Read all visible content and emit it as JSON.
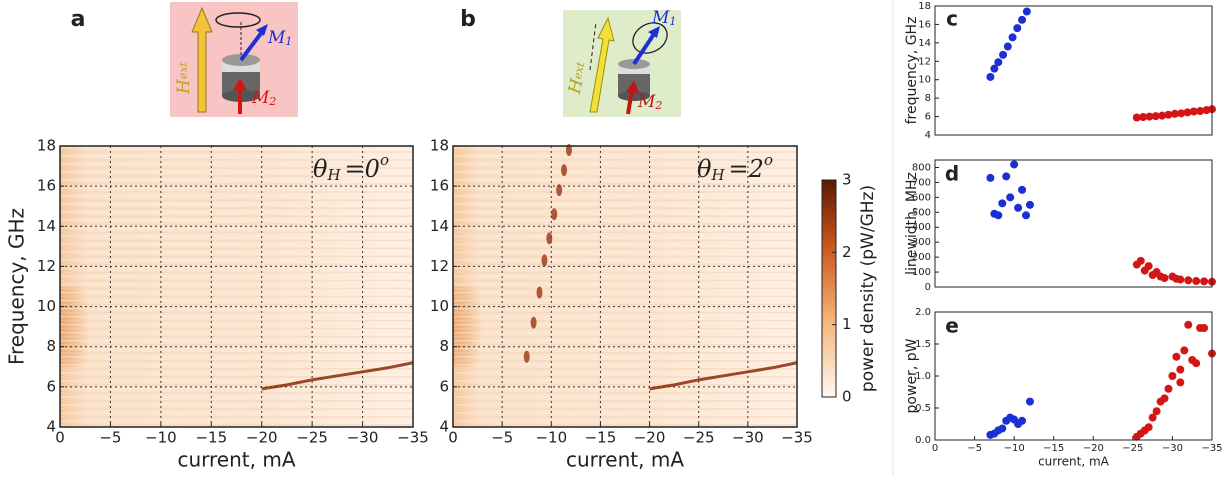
{
  "chart_data": [
    {
      "type": "heatmap",
      "panel": "a",
      "annotation_parts": [
        "θ",
        "H",
        "=0",
        "o"
      ],
      "xlabel": "current, mA",
      "ylabel": "Frequency, GHz",
      "xlim": [
        0,
        -35
      ],
      "ylim": [
        4,
        18
      ],
      "xticks": [
        0,
        {
          "value": -5,
          "label": "−5"
        },
        {
          "value": -10,
          "label": "−10"
        },
        {
          "value": -15,
          "label": "−15"
        },
        {
          "value": -20,
          "label": "−20"
        },
        {
          "value": -25,
          "label": "−25"
        },
        {
          "value": -30,
          "label": "−30"
        },
        {
          "value": -35,
          "label": "−35"
        }
      ],
      "yticks": [
        4,
        6,
        8,
        10,
        12,
        14,
        16,
        18
      ],
      "grid": true,
      "series": [
        {
          "style": "line",
          "color": "#8a2a08",
          "x": [
            -20,
            -22.5,
            -25,
            -27.5,
            -30,
            -32.5,
            -35
          ],
          "values": [
            5.9,
            6.1,
            6.35,
            6.55,
            6.75,
            6.95,
            7.2
          ]
        }
      ]
    },
    {
      "type": "heatmap",
      "panel": "b",
      "annotation_parts": [
        "θ",
        "H",
        "=2",
        "o"
      ],
      "xlabel": "current, mA",
      "xlim": [
        0,
        -35
      ],
      "ylim": [
        4,
        18
      ],
      "xticks": [
        0,
        {
          "value": -5,
          "label": "−5"
        },
        {
          "value": -10,
          "label": "−10"
        },
        {
          "value": -15,
          "label": "−15"
        },
        {
          "value": -20,
          "label": "−20"
        },
        {
          "value": -25,
          "label": "−25"
        },
        {
          "value": -30,
          "label": "−30"
        },
        {
          "value": -35,
          "label": "−35"
        }
      ],
      "yticks": [
        4,
        6,
        8,
        10,
        12,
        14,
        16,
        18
      ],
      "grid": true,
      "series": [
        {
          "style": "dots",
          "color": "#9a3410",
          "x": [
            -7.5,
            -8.2,
            -8.8,
            -9.3,
            -9.8,
            -10.3,
            -10.8,
            -11.3,
            -11.8
          ],
          "values": [
            7.5,
            9.2,
            10.7,
            12.3,
            13.4,
            14.6,
            15.8,
            16.8,
            17.8
          ]
        },
        {
          "style": "line",
          "color": "#8a2a08",
          "x": [
            -20,
            -22.5,
            -25,
            -27.5,
            -30,
            -32.5,
            -35
          ],
          "values": [
            5.9,
            6.1,
            6.35,
            6.55,
            6.75,
            6.95,
            7.2
          ]
        }
      ]
    },
    {
      "type": "colorbar",
      "label": "power density (pW/GHz)",
      "ylim": [
        0,
        3
      ],
      "yticks": [
        0,
        1,
        2,
        3
      ]
    },
    {
      "type": "scatter",
      "panel": "c",
      "ylabel": "frequency, GHz",
      "xlim": [
        0,
        -35
      ],
      "ylim": [
        4,
        18
      ],
      "yticks": [
        4,
        6,
        8,
        10,
        12,
        14,
        16,
        18
      ],
      "series": [
        {
          "color": "#1a2fd6",
          "x": [
            -7,
            -7.5,
            -8,
            -8.6,
            -9.2,
            -9.8,
            -10.4,
            -11,
            -11.6
          ],
          "values": [
            10.3,
            11.2,
            11.9,
            12.7,
            13.6,
            14.6,
            15.6,
            16.5,
            17.4
          ]
        },
        {
          "color": "#d41515",
          "x": [
            -25.5,
            -26.3,
            -27.1,
            -27.9,
            -28.7,
            -29.5,
            -30.3,
            -31.1,
            -31.9,
            -32.7,
            -33.5,
            -34.3,
            -35
          ],
          "values": [
            5.9,
            5.95,
            6.0,
            6.05,
            6.1,
            6.2,
            6.3,
            6.35,
            6.45,
            6.55,
            6.6,
            6.7,
            6.8
          ]
        }
      ]
    },
    {
      "type": "scatter",
      "panel": "d",
      "ylabel": "linewidth, MHz",
      "xlim": [
        0,
        -35
      ],
      "ylim": [
        0,
        850
      ],
      "yticks": [
        0,
        100,
        200,
        300,
        400,
        500,
        600,
        700,
        800
      ],
      "series": [
        {
          "color": "#1a2fd6",
          "x": [
            -7,
            -7.5,
            -8,
            -8.5,
            -9,
            -9.5,
            -10,
            -10.5,
            -11,
            -11.5,
            -12
          ],
          "values": [
            730,
            490,
            480,
            560,
            740,
            600,
            820,
            530,
            650,
            480,
            550
          ]
        },
        {
          "color": "#d41515",
          "x": [
            -25.5,
            -26,
            -26.5,
            -27,
            -27.5,
            -28,
            -28.5,
            -29,
            -30,
            -30.5,
            -31,
            -32,
            -33,
            -34,
            -35
          ],
          "values": [
            150,
            175,
            110,
            140,
            80,
            100,
            70,
            60,
            70,
            55,
            50,
            45,
            40,
            38,
            35
          ]
        }
      ]
    },
    {
      "type": "scatter",
      "panel": "e",
      "ylabel": "power, pW",
      "xlabel": "current, mA",
      "xlim": [
        0,
        -35
      ],
      "ylim": [
        0,
        2
      ],
      "xticks": [
        0,
        {
          "value": -5,
          "label": "−5"
        },
        {
          "value": -10,
          "label": "−10"
        },
        {
          "value": -15,
          "label": "−15"
        },
        {
          "value": -20,
          "label": "−20"
        },
        {
          "value": -25,
          "label": "−25"
        },
        {
          "value": -30,
          "label": "−30"
        },
        {
          "value": -35,
          "label": "−35"
        }
      ],
      "yticks": [
        {
          "value": 0,
          "label": "0.0"
        },
        {
          "value": 0.5,
          "label": "0.5"
        },
        {
          "value": 1,
          "label": "1.0"
        },
        {
          "value": 1.5,
          "label": "1.5"
        },
        {
          "value": 2,
          "label": "2.0"
        }
      ],
      "series": [
        {
          "color": "#1a2fd6",
          "x": [
            -7,
            -7.5,
            -8,
            -8.5,
            -9,
            -9.5,
            -10,
            -10.5,
            -11,
            -12
          ],
          "values": [
            0.08,
            0.1,
            0.15,
            0.18,
            0.3,
            0.35,
            0.32,
            0.25,
            0.3,
            0.6
          ]
        },
        {
          "color": "#d41515",
          "x": [
            -25.5,
            -26,
            -26.5,
            -27,
            -27.5,
            -28,
            -28.5,
            -29,
            -29.5,
            -30,
            -30.5,
            -31,
            -31,
            -31.5,
            -32,
            -32.5,
            -33,
            -33.5,
            -34,
            -35
          ],
          "values": [
            0.05,
            0.1,
            0.15,
            0.2,
            0.35,
            0.45,
            0.6,
            0.65,
            0.8,
            1.0,
            1.3,
            1.1,
            0.9,
            1.4,
            1.8,
            1.25,
            1.2,
            1.75,
            1.75,
            1.35
          ]
        }
      ]
    }
  ],
  "insets": [
    {
      "h": "H",
      "h_sub": "ext",
      "m1": "M",
      "m1_sub": "1",
      "m2": "M",
      "m2_sub": "2"
    },
    {
      "h": "H",
      "h_sub": "ext",
      "m1": "M",
      "m1_sub": "1",
      "m2": "M",
      "m2_sub": "2"
    }
  ]
}
